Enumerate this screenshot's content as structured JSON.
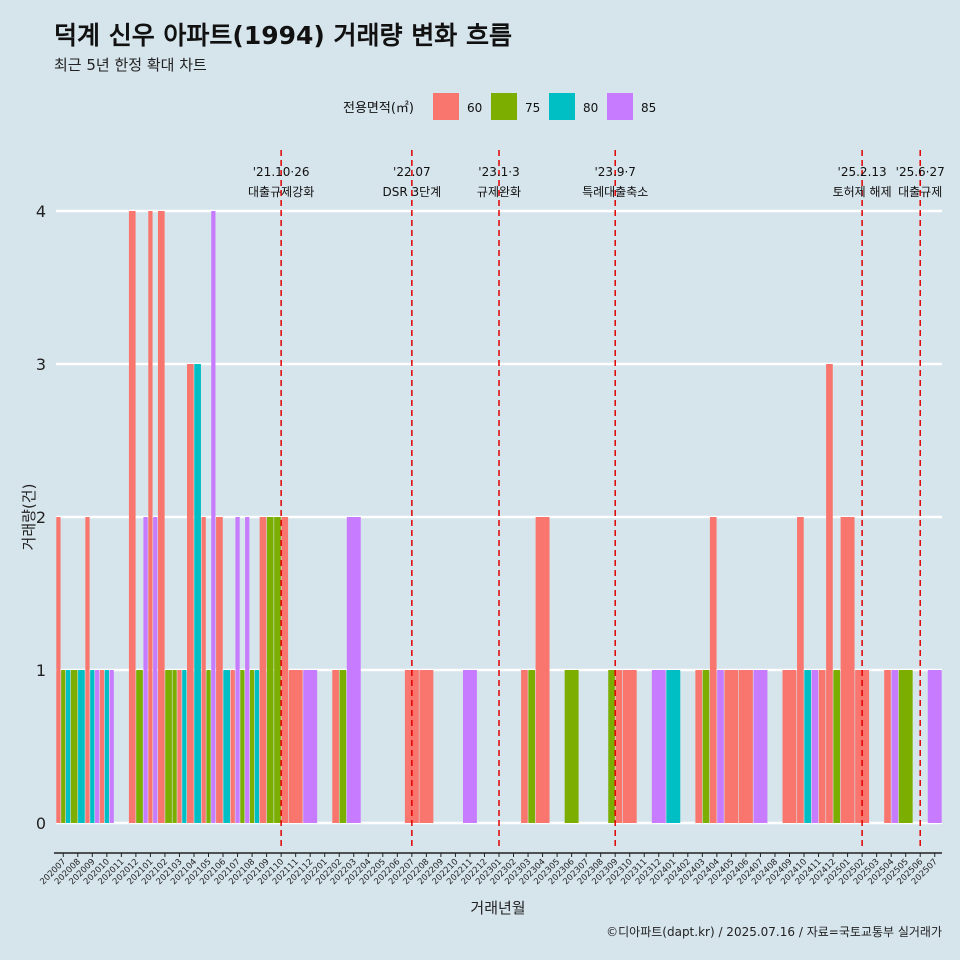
{
  "chart_data": {
    "type": "bar",
    "title": "덕계 신우 아파트(1994) 거래량 변화 흐름",
    "subtitle": "최근 5년 한정 확대 차트",
    "xlabel": "거래년월",
    "ylabel": "거래량(건)",
    "ylim": [
      0,
      4
    ],
    "yticks": [
      0,
      1,
      2,
      3,
      4
    ],
    "grid": true,
    "legend_title": "전용면적(㎡)",
    "legend_position": "top",
    "caption": "©디아파트(dapt.kr) / 2025.07.16 / 자료=국토교통부 실거래가",
    "categories": [
      "202007",
      "202008",
      "202009",
      "202010",
      "202011",
      "202012",
      "202101",
      "202102",
      "202103",
      "202104",
      "202105",
      "202106",
      "202107",
      "202108",
      "202109",
      "202110",
      "202111",
      "202112",
      "202201",
      "202202",
      "202203",
      "202204",
      "202205",
      "202206",
      "202207",
      "202208",
      "202209",
      "202210",
      "202211",
      "202212",
      "202301",
      "202302",
      "202303",
      "202304",
      "202305",
      "202306",
      "202307",
      "202308",
      "202309",
      "202310",
      "202311",
      "202312",
      "202401",
      "202402",
      "202403",
      "202404",
      "202405",
      "202406",
      "202407",
      "202408",
      "202409",
      "202410",
      "202411",
      "202412",
      "202501",
      "202502",
      "202503",
      "202504",
      "202505",
      "202506",
      "202507"
    ],
    "series": [
      {
        "name": "60",
        "color": "#F8766D"
      },
      {
        "name": "75",
        "color": "#7CAE00"
      },
      {
        "name": "80",
        "color": "#00BFC4"
      },
      {
        "name": "85",
        "color": "#C77CFF"
      }
    ],
    "groups": [
      {
        "month": "202007",
        "bars": [
          {
            "s": "60",
            "v": 2
          },
          {
            "s": "75",
            "v": 1
          },
          {
            "s": "80",
            "v": 1
          }
        ]
      },
      {
        "month": "202008",
        "bars": [
          {
            "s": "75",
            "v": 1
          },
          {
            "s": "80",
            "v": 1
          }
        ]
      },
      {
        "month": "202009",
        "bars": [
          {
            "s": "60",
            "v": 2
          },
          {
            "s": "80",
            "v": 1
          },
          {
            "s": "85",
            "v": 1
          }
        ]
      },
      {
        "month": "202010",
        "bars": [
          {
            "s": "60",
            "v": 1
          },
          {
            "s": "80",
            "v": 1
          },
          {
            "s": "85",
            "v": 1
          }
        ]
      },
      {
        "month": "202012",
        "bars": [
          {
            "s": "60",
            "v": 4
          },
          {
            "s": "75",
            "v": 1
          }
        ]
      },
      {
        "month": "202101",
        "bars": [
          {
            "s": "85",
            "v": 2
          },
          {
            "s": "60",
            "v": 4
          },
          {
            "s": "85",
            "v": 2
          }
        ]
      },
      {
        "month": "202102",
        "bars": [
          {
            "s": "60",
            "v": 4
          },
          {
            "s": "75",
            "v": 1
          }
        ]
      },
      {
        "month": "202103",
        "bars": [
          {
            "s": "75",
            "v": 1
          },
          {
            "s": "60",
            "v": 1
          },
          {
            "s": "80",
            "v": 1
          }
        ]
      },
      {
        "month": "202104",
        "bars": [
          {
            "s": "60",
            "v": 3
          },
          {
            "s": "80",
            "v": 3
          }
        ]
      },
      {
        "month": "202105",
        "bars": [
          {
            "s": "60",
            "v": 2
          },
          {
            "s": "75",
            "v": 1
          },
          {
            "s": "85",
            "v": 4
          }
        ]
      },
      {
        "month": "202106",
        "bars": [
          {
            "s": "60",
            "v": 2
          },
          {
            "s": "80",
            "v": 1
          }
        ]
      },
      {
        "month": "202107",
        "bars": [
          {
            "s": "60",
            "v": 1
          },
          {
            "s": "85",
            "v": 2
          },
          {
            "s": "75",
            "v": 1
          }
        ]
      },
      {
        "month": "202108",
        "bars": [
          {
            "s": "85",
            "v": 2
          },
          {
            "s": "75",
            "v": 1
          },
          {
            "s": "80",
            "v": 1
          }
        ]
      },
      {
        "month": "202109",
        "bars": [
          {
            "s": "60",
            "v": 2
          },
          {
            "s": "75",
            "v": 2
          }
        ]
      },
      {
        "month": "202110",
        "bars": [
          {
            "s": "75",
            "v": 2
          },
          {
            "s": "60",
            "v": 2
          }
        ]
      },
      {
        "month": "202111",
        "bars": [
          {
            "s": "60",
            "v": 1
          }
        ]
      },
      {
        "month": "202112",
        "bars": [
          {
            "s": "85",
            "v": 1
          }
        ]
      },
      {
        "month": "202202",
        "bars": [
          {
            "s": "60",
            "v": 1
          },
          {
            "s": "75",
            "v": 1
          }
        ]
      },
      {
        "month": "202203",
        "bars": [
          {
            "s": "85",
            "v": 2
          }
        ]
      },
      {
        "month": "202207",
        "bars": [
          {
            "s": "60",
            "v": 1
          }
        ]
      },
      {
        "month": "202208",
        "bars": [
          {
            "s": "60",
            "v": 1
          }
        ]
      },
      {
        "month": "202211",
        "bars": [
          {
            "s": "85",
            "v": 1
          }
        ]
      },
      {
        "month": "202303",
        "bars": [
          {
            "s": "60",
            "v": 1
          },
          {
            "s": "75",
            "v": 1
          }
        ]
      },
      {
        "month": "202304",
        "bars": [
          {
            "s": "60",
            "v": 2
          }
        ]
      },
      {
        "month": "202306",
        "bars": [
          {
            "s": "75",
            "v": 1
          }
        ]
      },
      {
        "month": "202309",
        "bars": [
          {
            "s": "75",
            "v": 1
          },
          {
            "s": "60",
            "v": 1
          }
        ]
      },
      {
        "month": "202310",
        "bars": [
          {
            "s": "60",
            "v": 1
          }
        ]
      },
      {
        "month": "202312",
        "bars": [
          {
            "s": "85",
            "v": 1
          }
        ]
      },
      {
        "month": "202401",
        "bars": [
          {
            "s": "80",
            "v": 1
          }
        ]
      },
      {
        "month": "202403",
        "bars": [
          {
            "s": "60",
            "v": 1
          },
          {
            "s": "75",
            "v": 1
          }
        ]
      },
      {
        "month": "202404",
        "bars": [
          {
            "s": "60",
            "v": 2
          },
          {
            "s": "85",
            "v": 1
          }
        ]
      },
      {
        "month": "202405",
        "bars": [
          {
            "s": "60",
            "v": 1
          }
        ]
      },
      {
        "month": "202406",
        "bars": [
          {
            "s": "60",
            "v": 1
          }
        ]
      },
      {
        "month": "202407",
        "bars": [
          {
            "s": "85",
            "v": 1
          }
        ]
      },
      {
        "month": "202409",
        "bars": [
          {
            "s": "60",
            "v": 1
          }
        ]
      },
      {
        "month": "202410",
        "bars": [
          {
            "s": "60",
            "v": 2
          },
          {
            "s": "80",
            "v": 1
          }
        ]
      },
      {
        "month": "202411",
        "bars": [
          {
            "s": "85",
            "v": 1
          },
          {
            "s": "60",
            "v": 1
          }
        ]
      },
      {
        "month": "202412",
        "bars": [
          {
            "s": "60",
            "v": 3
          },
          {
            "s": "75",
            "v": 1
          }
        ]
      },
      {
        "month": "202501",
        "bars": [
          {
            "s": "60",
            "v": 2
          }
        ]
      },
      {
        "month": "202502",
        "bars": [
          {
            "s": "60",
            "v": 1
          }
        ]
      },
      {
        "month": "202504",
        "bars": [
          {
            "s": "60",
            "v": 1
          },
          {
            "s": "85",
            "v": 1
          }
        ]
      },
      {
        "month": "202505",
        "bars": [
          {
            "s": "75",
            "v": 1
          }
        ]
      },
      {
        "month": "202507",
        "bars": [
          {
            "s": "85",
            "v": 1
          }
        ]
      }
    ],
    "annotations": [
      {
        "month": "202110",
        "date": "'21.10·26",
        "label": "대출규제강화"
      },
      {
        "month": "202207",
        "date": "'22.07",
        "label": "DSR 3단계"
      },
      {
        "month": "202301",
        "date": "'23.1·3",
        "label": "규제완화"
      },
      {
        "month": "202309",
        "date": "'23.9·7",
        "label": "특례대출축소"
      },
      {
        "month": "202502",
        "date": "'25.2.13",
        "label": "토허제 해제"
      },
      {
        "month": "202506",
        "date": "'25.6·27",
        "label": "대출규제"
      }
    ]
  }
}
